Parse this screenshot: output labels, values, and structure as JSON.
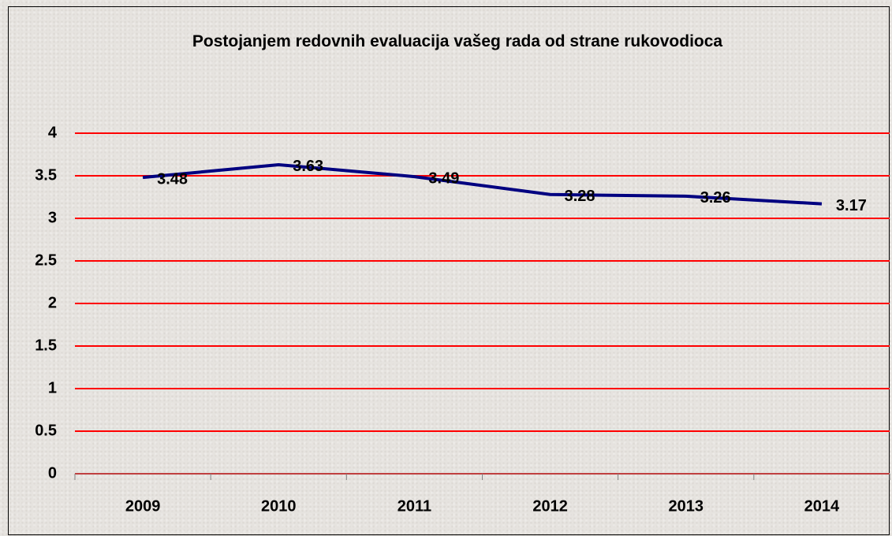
{
  "chart_data": {
    "type": "line",
    "title": "Postojanjem redovnih evaluacija vašeg rada od strane rukovodioca",
    "categories": [
      "2009",
      "2010",
      "2011",
      "2012",
      "2013",
      "2014"
    ],
    "values": [
      3.48,
      3.63,
      3.49,
      3.28,
      3.26,
      3.17
    ],
    "color": "#000080",
    "grid_color": "#ff0000",
    "ylim": [
      0,
      4
    ],
    "yticks": [
      0,
      0.5,
      1,
      1.5,
      2,
      2.5,
      3,
      3.5,
      4
    ],
    "grid": true
  }
}
